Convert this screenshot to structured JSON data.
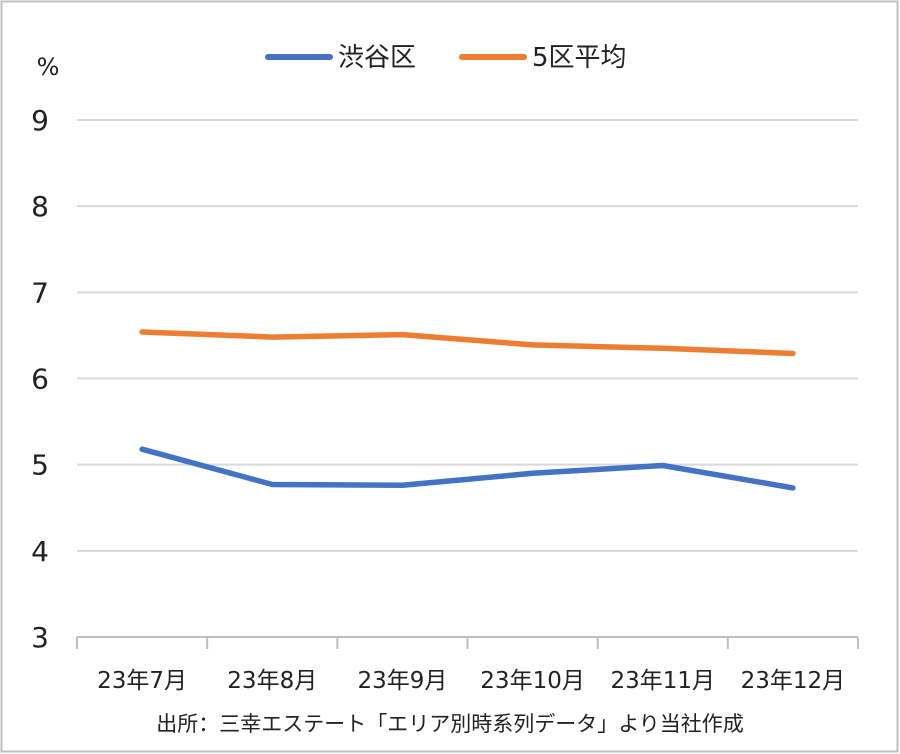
{
  "chart_data": {
    "type": "line",
    "unit_label": "%",
    "categories": [
      "23年7月",
      "23年8月",
      "23年9月",
      "23年10月",
      "23年11月",
      "23年12月"
    ],
    "series": [
      {
        "name": "渋谷区",
        "color": "#4472C4",
        "values": [
          5.18,
          4.77,
          4.76,
          4.9,
          4.99,
          4.73
        ]
      },
      {
        "name": "5区平均",
        "color": "#ED7D31",
        "values": [
          6.54,
          6.48,
          6.51,
          6.39,
          6.35,
          6.29
        ]
      }
    ],
    "ylim": [
      3,
      9
    ],
    "yticks": [
      3,
      4,
      5,
      6,
      7,
      8,
      9
    ],
    "grid": true,
    "legend_position": "top-center",
    "source": "出所：三幸エステート「エリア別時系列データ」より当社作成"
  },
  "colors": {
    "grid": "#D9D9D9",
    "axis": "#BFBFBF",
    "border": "#BFBFBF"
  }
}
